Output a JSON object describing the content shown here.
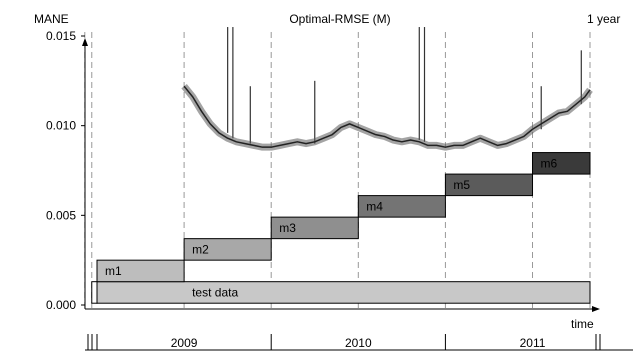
{
  "chart_data": {
    "type": "line",
    "title": "Optimal-RMSE (M)",
    "ylabel": "MANE",
    "xlabel": "time",
    "corner_label": "1 year",
    "ylim": [
      0,
      0.015
    ],
    "y_ticks": [
      "0.000",
      "0.005",
      "0.010",
      "0.015"
    ],
    "x_range": [
      2008.92,
      2011.86
    ],
    "year_labels": [
      {
        "label": "2009",
        "center": 2009.5
      },
      {
        "label": "2010",
        "center": 2010.5
      },
      {
        "label": "2011",
        "center": 2011.5
      }
    ],
    "year_boundaries": [
      2009.0,
      2010.0,
      2011.0
    ],
    "dashed_lines": [
      2008.93,
      2008.97,
      2009.5,
      2010.0,
      2010.5,
      2011.0,
      2011.5,
      2011.83
    ],
    "test_data": {
      "label": "test data",
      "start": 2009.0,
      "end": 2011.83,
      "y_low": 0.0001,
      "y_high": 0.0013
    },
    "models": [
      {
        "label": "m1",
        "start": 2009.0,
        "end": 2009.5,
        "y_low": 0.0013,
        "y_high": 0.0025
      },
      {
        "label": "m2",
        "start": 2009.5,
        "end": 2010.0,
        "y_low": 0.0025,
        "y_high": 0.0037
      },
      {
        "label": "m3",
        "start": 2010.0,
        "end": 2010.5,
        "y_low": 0.0037,
        "y_high": 0.0049
      },
      {
        "label": "m4",
        "start": 2010.5,
        "end": 2011.0,
        "y_low": 0.0049,
        "y_high": 0.0061
      },
      {
        "label": "m5",
        "start": 2011.0,
        "end": 2011.5,
        "y_low": 0.0061,
        "y_high": 0.0073
      },
      {
        "label": "m6",
        "start": 2011.5,
        "end": 2011.83,
        "y_low": 0.0073,
        "y_high": 0.0085
      }
    ],
    "model_colors": [
      "#bdbdbd",
      "#a8a8a8",
      "#8f8f8f",
      "#747474",
      "#5b5b5b",
      "#3a3a3a"
    ],
    "test_color": "#c8c8c8",
    "series": [
      {
        "x": [
          2009.5,
          2009.55,
          2009.6,
          2009.65,
          2009.7,
          2009.75,
          2009.8,
          2009.85,
          2009.9,
          2009.95,
          2010.0,
          2010.05,
          2010.1,
          2010.15,
          2010.2,
          2010.25,
          2010.3,
          2010.35,
          2010.4,
          2010.45,
          2010.5,
          2010.55,
          2010.6,
          2010.65,
          2010.7,
          2010.75,
          2010.8,
          2010.85,
          2010.9,
          2010.95,
          2011.0,
          2011.05,
          2011.1,
          2011.15,
          2011.2,
          2011.25,
          2011.3,
          2011.35,
          2011.4,
          2011.45,
          2011.5,
          2011.55,
          2011.6,
          2011.65,
          2011.7,
          2011.75,
          2011.8,
          2011.83
        ],
        "values": [
          0.0122,
          0.0116,
          0.0108,
          0.0101,
          0.0096,
          0.0093,
          0.0091,
          0.009,
          0.0089,
          0.0088,
          0.0088,
          0.0089,
          0.009,
          0.0091,
          0.009,
          0.0091,
          0.0093,
          0.0095,
          0.0099,
          0.0101,
          0.0099,
          0.0097,
          0.0095,
          0.0094,
          0.0092,
          0.0091,
          0.0092,
          0.0091,
          0.0089,
          0.0089,
          0.0088,
          0.0089,
          0.0089,
          0.0091,
          0.0093,
          0.0091,
          0.0089,
          0.009,
          0.0092,
          0.0094,
          0.0098,
          0.0101,
          0.0104,
          0.0107,
          0.0108,
          0.0112,
          0.0116,
          0.012
        ]
      }
    ],
    "spikes": [
      {
        "x": 2009.75,
        "y": 0.0155
      },
      {
        "x": 2009.78,
        "y": 0.0155
      },
      {
        "x": 2009.88,
        "y": 0.0122
      },
      {
        "x": 2010.25,
        "y": 0.0125
      },
      {
        "x": 2010.85,
        "y": 0.0155
      },
      {
        "x": 2010.88,
        "y": 0.0155
      },
      {
        "x": 2011.55,
        "y": 0.0122
      },
      {
        "x": 2011.78,
        "y": 0.0142
      }
    ],
    "grid": false
  }
}
